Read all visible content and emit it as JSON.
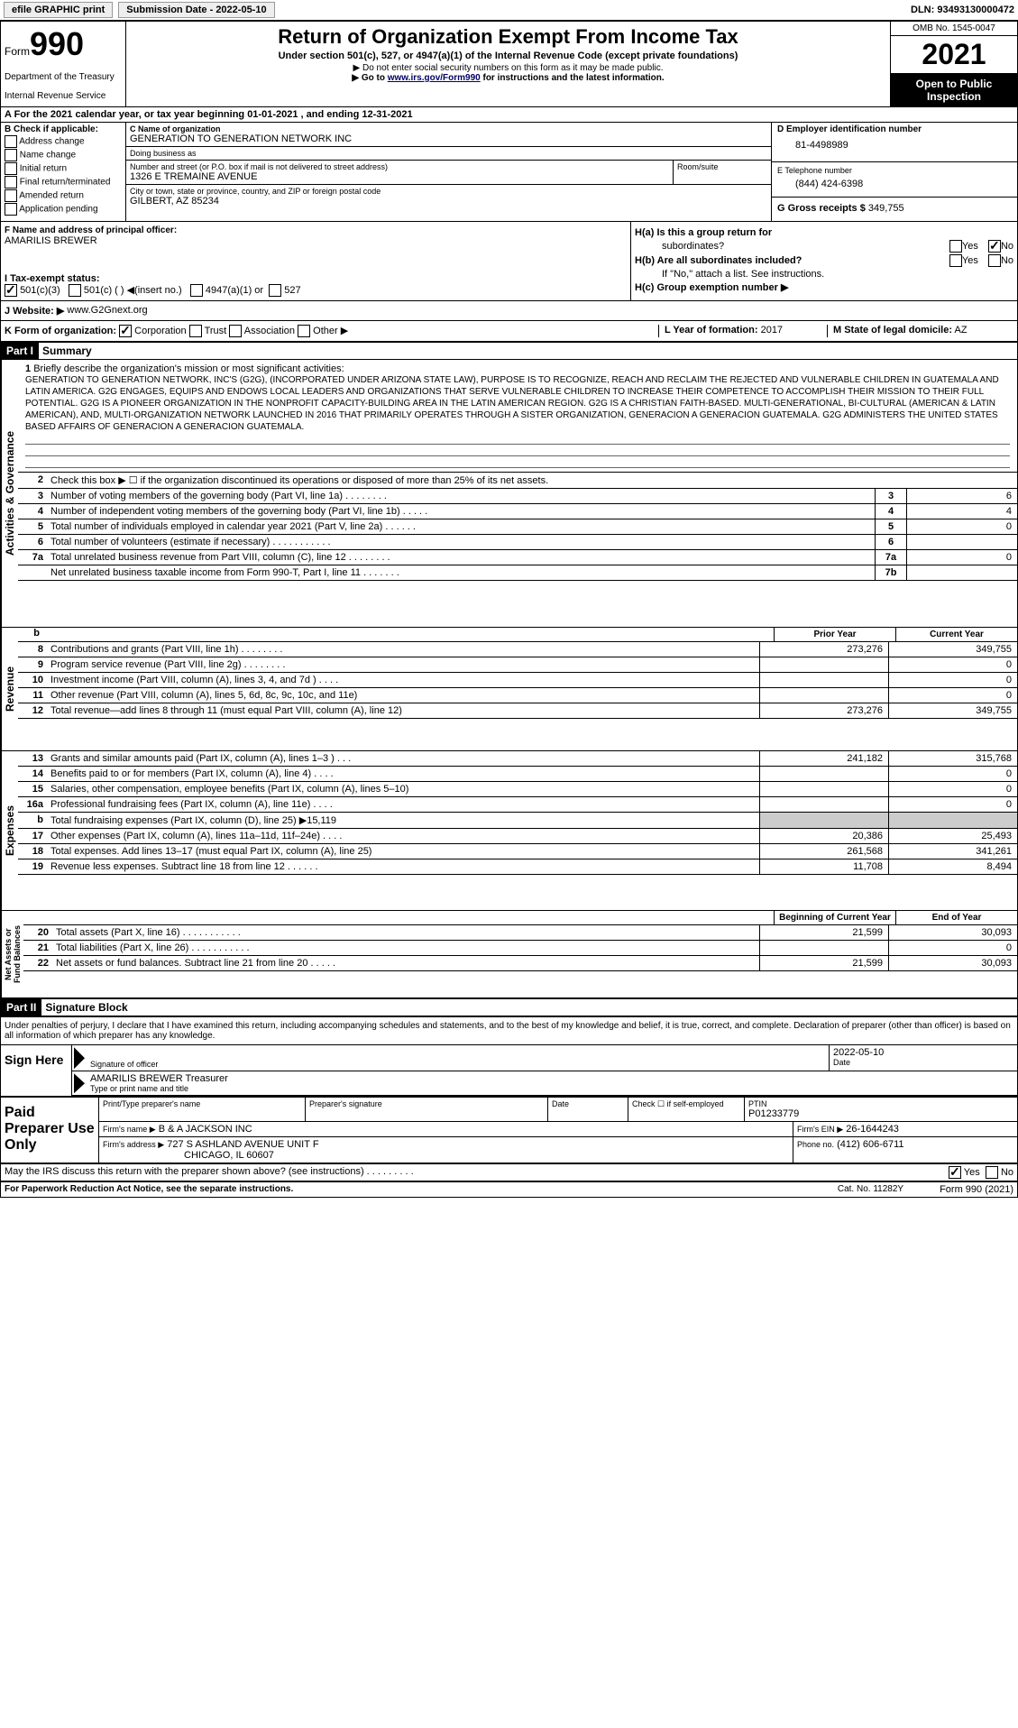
{
  "topbar": {
    "efile": "efile GRAPHIC print",
    "submission": "Submission Date - 2022-05-10",
    "dln": "DLN: 93493130000472"
  },
  "header": {
    "form_prefix": "Form",
    "form_number": "990",
    "title": "Return of Organization Exempt From Income Tax",
    "subtitle": "Under section 501(c), 527, or 4947(a)(1) of the Internal Revenue Code (except private foundations)",
    "note1": "▶ Do not enter social security numbers on this form as it may be made public.",
    "note2_prefix": "▶ Go to ",
    "note2_link": "www.irs.gov/Form990",
    "note2_suffix": " for instructions and the latest information.",
    "dept": "Department of the Treasury",
    "irs": "Internal Revenue Service",
    "omb": "OMB No. 1545-0047",
    "year": "2021",
    "inspection1": "Open to Public",
    "inspection2": "Inspection"
  },
  "line_a": "A For the 2021 calendar year, or tax year beginning 01-01-2021   , and ending 12-31-2021",
  "box_b": {
    "label": "B Check if applicable:",
    "opts": [
      "Address change",
      "Name change",
      "Initial return",
      "Final return/terminated",
      "Amended return",
      "Application pending"
    ]
  },
  "box_c": {
    "label": "C Name of organization",
    "name": "GENERATION TO GENERATION NETWORK INC",
    "dba_label": "Doing business as",
    "addr_label": "Number and street (or P.O. box if mail is not delivered to street address)",
    "addr": "1326 E TREMAINE AVENUE",
    "room_label": "Room/suite",
    "city_label": "City or town, state or province, country, and ZIP or foreign postal code",
    "city": "GILBERT, AZ  85234"
  },
  "box_d": {
    "label": "D Employer identification number",
    "ein": "81-4498989"
  },
  "box_e": {
    "label": "E Telephone number",
    "phone": "(844) 424-6398"
  },
  "box_g": {
    "label": "G Gross receipts $",
    "amount": "349,755"
  },
  "box_f": {
    "label": "F  Name and address of principal officer:",
    "name": "AMARILIS BREWER"
  },
  "box_h": {
    "ha": "H(a)  Is this a group return for",
    "ha2": "subordinates?",
    "hb": "H(b)  Are all subordinates included?",
    "hb2": "If \"No,\" attach a list. See instructions.",
    "hc": "H(c)  Group exemption number ▶"
  },
  "tax_exempt": {
    "label": "I   Tax-exempt status:",
    "opt1": "501(c)(3)",
    "opt2": "501(c) (  ) ◀(insert no.)",
    "opt3": "4947(a)(1) or",
    "opt4": "527"
  },
  "website": {
    "label": "J   Website: ▶",
    "value": "www.G2Gnext.org"
  },
  "line_k": {
    "label": "K Form of organization:",
    "opts": [
      "Corporation",
      "Trust",
      "Association",
      "Other ▶"
    ]
  },
  "line_l": {
    "label": "L Year of formation:",
    "value": "2017"
  },
  "line_m": {
    "label": "M State of legal domicile:",
    "value": "AZ"
  },
  "part1": {
    "header": "Part I",
    "title": "Summary",
    "vlabel1": "Activities & Governance",
    "vlabel2": "Revenue",
    "vlabel3": "Expenses",
    "vlabel4": "Net Assets or Fund Balances",
    "line1_label": "Briefly describe the organization's mission or most significant activities:",
    "mission": "GENERATION TO GENERATION NETWORK, INC'S (G2G), (INCORPORATED UNDER ARIZONA STATE LAW), PURPOSE IS TO RECOGNIZE, REACH AND RECLAIM THE REJECTED AND VULNERABLE CHILDREN IN GUATEMALA AND LATIN AMERICA. G2G ENGAGES, EQUIPS AND ENDOWS LOCAL LEADERS AND ORGANIZATIONS THAT SERVE VULNERABLE CHILDREN TO INCREASE THEIR COMPETENCE TO ACCOMPLISH THEIR MISSION TO THEIR FULL POTENTIAL. G2G IS A PIONEER ORGANIZATION IN THE NONPROFIT CAPACITY-BUILDING AREA IN THE LATIN AMERICAN REGION. G2G IS A CHRISTIAN FAITH-BASED. MULTI-GENERATIONAL, BI-CULTURAL (AMERICAN & LATIN AMERICAN), AND, MULTI-ORGANIZATION NETWORK LAUNCHED IN 2016 THAT PRIMARILY OPERATES THROUGH A SISTER ORGANIZATION, GENERACION A GENERACION GUATEMALA. G2G ADMINISTERS THE UNITED STATES BASED AFFAIRS OF GENERACION A GENERACION GUATEMALA.",
    "line2": "Check this box ▶ ☐  if the organization discontinued its operations or disposed of more than 25% of its net assets.",
    "rows_gov": [
      {
        "n": "3",
        "desc": "Number of voting members of the governing body (Part VI, line 1a)  .    .    .    .    .    .    .    .",
        "box": "3",
        "val": "6"
      },
      {
        "n": "4",
        "desc": "Number of independent voting members of the governing body (Part VI, line 1b)   .    .    .    .    .",
        "box": "4",
        "val": "4"
      },
      {
        "n": "5",
        "desc": "Total number of individuals employed in calendar year 2021 (Part V, line 2a)  .    .    .    .    .    .",
        "box": "5",
        "val": "0"
      },
      {
        "n": "6",
        "desc": "Total number of volunteers (estimate if necessary)  .    .    .    .    .    .    .    .    .    .    .",
        "box": "6",
        "val": ""
      },
      {
        "n": "7a",
        "desc": "Total unrelated business revenue from Part VIII, column (C), line 12  .    .    .    .    .    .    .    .",
        "box": "7a",
        "val": "0"
      },
      {
        "n": "",
        "desc": "Net unrelated business taxable income from Form 990-T, Part I, line 11  .    .    .    .    .    .    .",
        "box": "7b",
        "val": ""
      }
    ],
    "col_prior": "Prior Year",
    "col_current": "Current Year",
    "rows_rev": [
      {
        "n": "8",
        "desc": "Contributions and grants (Part VIII, line 1h)   .    .    .    .    .    .    .    .",
        "prior": "273,276",
        "curr": "349,755"
      },
      {
        "n": "9",
        "desc": "Program service revenue (Part VIII, line 2g)    .    .    .    .    .    .    .    .",
        "prior": "",
        "curr": "0"
      },
      {
        "n": "10",
        "desc": "Investment income (Part VIII, column (A), lines 3, 4, and 7d )   .    .    .    .",
        "prior": "",
        "curr": "0"
      },
      {
        "n": "11",
        "desc": "Other revenue (Part VIII, column (A), lines 5, 6d, 8c, 9c, 10c, and 11e)",
        "prior": "",
        "curr": "0"
      },
      {
        "n": "12",
        "desc": "Total revenue—add lines 8 through 11 (must equal Part VIII, column (A), line 12)",
        "prior": "273,276",
        "curr": "349,755"
      }
    ],
    "rows_exp": [
      {
        "n": "13",
        "desc": "Grants and similar amounts paid (Part IX, column (A), lines 1–3 )   .    .    .",
        "prior": "241,182",
        "curr": "315,768"
      },
      {
        "n": "14",
        "desc": "Benefits paid to or for members (Part IX, column (A), line 4)   .    .    .    .",
        "prior": "",
        "curr": "0"
      },
      {
        "n": "15",
        "desc": "Salaries, other compensation, employee benefits (Part IX, column (A), lines 5–10)",
        "prior": "",
        "curr": "0"
      },
      {
        "n": "16a",
        "desc": "Professional fundraising fees (Part IX, column (A), line 11e)   .    .    .    .",
        "prior": "",
        "curr": "0"
      },
      {
        "n": "b",
        "desc": "Total fundraising expenses (Part IX, column (D), line 25) ▶15,119",
        "prior": "shaded",
        "curr": "shaded"
      },
      {
        "n": "17",
        "desc": "Other expenses (Part IX, column (A), lines 11a–11d, 11f–24e)   .    .    .    .",
        "prior": "20,386",
        "curr": "25,493"
      },
      {
        "n": "18",
        "desc": "Total expenses. Add lines 13–17 (must equal Part IX, column (A), line 25)",
        "prior": "261,568",
        "curr": "341,261"
      },
      {
        "n": "19",
        "desc": "Revenue less expenses. Subtract line 18 from line 12  .    .    .    .    .    .",
        "prior": "11,708",
        "curr": "8,494"
      }
    ],
    "col_begin": "Beginning of Current Year",
    "col_end": "End of Year",
    "rows_net": [
      {
        "n": "20",
        "desc": "Total assets (Part X, line 16)   .    .    .    .    .    .    .    .    .    .    .",
        "prior": "21,599",
        "curr": "30,093"
      },
      {
        "n": "21",
        "desc": "Total liabilities (Part X, line 26)  .    .    .    .    .    .    .    .    .    .    .",
        "prior": "",
        "curr": "0"
      },
      {
        "n": "22",
        "desc": "Net assets or fund balances. Subtract line 21 from line 20  .    .    .    .    .",
        "prior": "21,599",
        "curr": "30,093"
      }
    ]
  },
  "part2": {
    "header": "Part II",
    "title": "Signature Block",
    "declaration": "Under penalties of perjury, I declare that I have examined this return, including accompanying schedules and statements, and to the best of my knowledge and belief, it is true, correct, and complete. Declaration of preparer (other than officer) is based on all information of which preparer has any knowledge.",
    "sign_here": "Sign Here",
    "sig_officer_label": "Signature of officer",
    "sig_date": "2022-05-10",
    "date_label": "Date",
    "officer_name": "AMARILIS BREWER Treasurer",
    "officer_name_label": "Type or print name and title",
    "paid_prep": "Paid Preparer Use Only",
    "prep_name_label": "Print/Type preparer's name",
    "prep_sig_label": "Preparer's signature",
    "prep_date_label": "Date",
    "prep_check": "Check ☐ if self-employed",
    "ptin_label": "PTIN",
    "ptin": "P01233779",
    "firm_name_label": "Firm's name    ▶",
    "firm_name": "B & A JACKSON INC",
    "firm_ein_label": "Firm's EIN ▶",
    "firm_ein": "26-1644243",
    "firm_addr_label": "Firm's address ▶",
    "firm_addr": "727 S ASHLAND AVENUE UNIT F",
    "firm_city": "CHICAGO, IL  60607",
    "phone_label": "Phone no.",
    "phone": "(412) 606-6711",
    "discuss": "May the IRS discuss this return with the preparer shown above? (see instructions)   .    .    .    .    .    .    .    .    .",
    "yes": "Yes",
    "no": "No"
  },
  "footer": {
    "left": "For Paperwork Reduction Act Notice, see the separate instructions.",
    "mid": "Cat. No. 11282Y",
    "right": "Form 990 (2021)"
  }
}
